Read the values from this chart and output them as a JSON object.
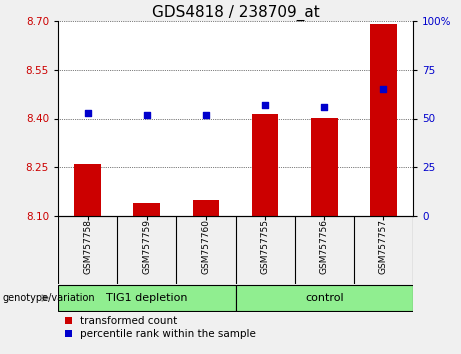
{
  "title": "GDS4818 / 238709_at",
  "samples": [
    "GSM757758",
    "GSM757759",
    "GSM757760",
    "GSM757755",
    "GSM757756",
    "GSM757757"
  ],
  "bar_values": [
    8.26,
    8.14,
    8.15,
    8.415,
    8.4,
    8.692
  ],
  "bar_baseline": 8.1,
  "percentile_values": [
    53,
    52,
    52,
    57,
    56,
    65
  ],
  "left_yticks": [
    8.1,
    8.25,
    8.4,
    8.55,
    8.7
  ],
  "right_yticks": [
    0,
    25,
    50,
    75,
    100
  ],
  "ylim_left": [
    8.1,
    8.7
  ],
  "ylim_right": [
    0,
    100
  ],
  "bar_color": "#cc0000",
  "dot_color": "#0000cc",
  "group1_label": "TIG1 depletion",
  "group2_label": "control",
  "group1_color": "#90ee90",
  "group2_color": "#90ee90",
  "xlabel_genotype": "genotype/variation",
  "legend_red": "transformed count",
  "legend_blue": "percentile rank within the sample",
  "title_fontsize": 11,
  "tick_fontsize": 7.5,
  "sample_fontsize": 6.5,
  "group_fontsize": 8,
  "sample_bg_color": "#c8c8c8",
  "plot_bg_color": "#ffffff",
  "fig_bg_color": "#f0f0f0"
}
